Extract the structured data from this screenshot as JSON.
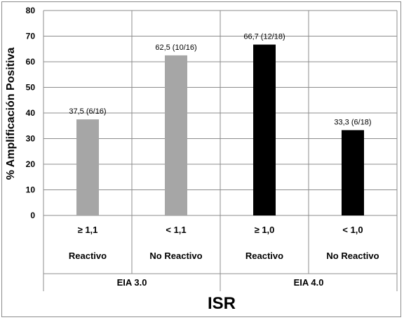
{
  "chart_data": {
    "type": "bar",
    "ylabel": "% Amplificación Positiva",
    "xlabel": "ISR",
    "ylim": [
      0,
      80
    ],
    "yticks": [
      0,
      10,
      20,
      30,
      40,
      50,
      60,
      70,
      80
    ],
    "grid": true,
    "bars": [
      {
        "threshold": "≥ 1,1",
        "category": "Reactivo",
        "group": "EIA 3.0",
        "value": 37.5,
        "label": "37,5 (6/16)",
        "color": "#a6a6a6"
      },
      {
        "threshold": "< 1,1",
        "category": "No Reactivo",
        "group": "EIA 3.0",
        "value": 62.5,
        "label": "62,5 (10/16)",
        "color": "#a6a6a6"
      },
      {
        "threshold": "≥ 1,0",
        "category": "Reactivo",
        "group": "EIA 4.0",
        "value": 66.7,
        "label": "66,7 (12/18)",
        "color": "#000000"
      },
      {
        "threshold": "< 1,0",
        "category": "No Reactivo",
        "group": "EIA 4.0",
        "value": 33.3,
        "label": "33,3 (6/18)",
        "color": "#000000"
      }
    ],
    "groups": [
      "EIA 3.0",
      "EIA 4.0"
    ]
  }
}
